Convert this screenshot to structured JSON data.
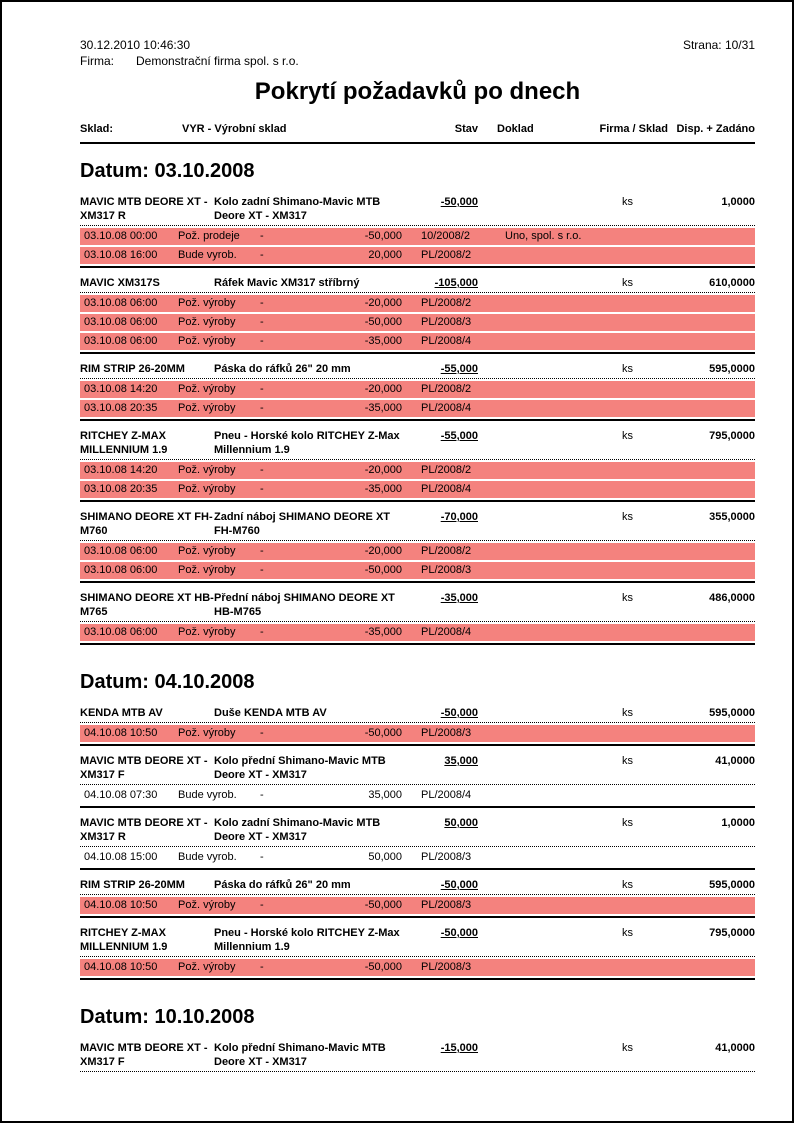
{
  "header": {
    "datetime": "30.12.2010  10:46:30",
    "page": "Strana: 10/31",
    "firma_label": "Firma:",
    "firma_value": "Demonstrační firma spol. s r.o.",
    "title": "Pokrytí požadavků po dnech"
  },
  "columns": {
    "sklad_label": "Sklad:",
    "sklad_value": "VYR - Výrobní sklad",
    "stav": "Stav",
    "doklad": "Doklad",
    "firma_sklad": "Firma / Sklad",
    "disp_zadano": "Disp. + Zadáno"
  },
  "colors": {
    "highlight_row": "#f4827e"
  },
  "sections": [
    {
      "date_heading": "Datum: 03.10.2008",
      "items": [
        {
          "code": "MAVIC MTB DEORE XT - XM317 R",
          "name": "Kolo zadní Shimano-Mavic MTB Deore XT - XM317",
          "stav": "-50,000",
          "unit": "ks",
          "disp": "1,0000",
          "rows": [
            {
              "datetime": "03.10.08 00:00",
              "type": "Pož. prodeje",
              "dash": "-",
              "amount": "-50,000",
              "doklad": "10/2008/2",
              "firma": "Uno, spol. s r.o.",
              "highlight": true
            },
            {
              "datetime": "03.10.08 16:00",
              "type": "Bude vyrob.",
              "dash": "-",
              "amount": "20,000",
              "doklad": "PL/2008/2",
              "firma": "",
              "highlight": true
            }
          ]
        },
        {
          "code": "MAVIC XM317S",
          "name": "Ráfek Mavic XM317 stříbrný",
          "stav": "-105,000",
          "unit": "ks",
          "disp": "610,0000",
          "rows": [
            {
              "datetime": "03.10.08 06:00",
              "type": "Pož. výroby",
              "dash": "-",
              "amount": "-20,000",
              "doklad": "PL/2008/2",
              "firma": "",
              "highlight": true
            },
            {
              "datetime": "03.10.08 06:00",
              "type": "Pož. výroby",
              "dash": "-",
              "amount": "-50,000",
              "doklad": "PL/2008/3",
              "firma": "",
              "highlight": true
            },
            {
              "datetime": "03.10.08 06:00",
              "type": "Pož. výroby",
              "dash": "-",
              "amount": "-35,000",
              "doklad": "PL/2008/4",
              "firma": "",
              "highlight": true
            }
          ]
        },
        {
          "code": "RIM STRIP 26-20MM",
          "name": "Páska do ráfků 26\" 20 mm",
          "stav": "-55,000",
          "unit": "ks",
          "disp": "595,0000",
          "rows": [
            {
              "datetime": "03.10.08 14:20",
              "type": "Pož. výroby",
              "dash": "-",
              "amount": "-20,000",
              "doklad": "PL/2008/2",
              "firma": "",
              "highlight": true
            },
            {
              "datetime": "03.10.08 20:35",
              "type": "Pož. výroby",
              "dash": "-",
              "amount": "-35,000",
              "doklad": "PL/2008/4",
              "firma": "",
              "highlight": true
            }
          ]
        },
        {
          "code": "RITCHEY Z-MAX MILLENNIUM 1.9",
          "name": "Pneu - Horské kolo RITCHEY Z-Max Millennium 1.9",
          "stav": "-55,000",
          "unit": "ks",
          "disp": "795,0000",
          "rows": [
            {
              "datetime": "03.10.08 14:20",
              "type": "Pož. výroby",
              "dash": "-",
              "amount": "-20,000",
              "doklad": "PL/2008/2",
              "firma": "",
              "highlight": true
            },
            {
              "datetime": "03.10.08 20:35",
              "type": "Pož. výroby",
              "dash": "-",
              "amount": "-35,000",
              "doklad": "PL/2008/4",
              "firma": "",
              "highlight": true
            }
          ]
        },
        {
          "code": "SHIMANO DEORE XT FH-M760",
          "name": "Zadní náboj SHIMANO DEORE XT FH-M760",
          "stav": "-70,000",
          "unit": "ks",
          "disp": "355,0000",
          "rows": [
            {
              "datetime": "03.10.08 06:00",
              "type": "Pož. výroby",
              "dash": "-",
              "amount": "-20,000",
              "doklad": "PL/2008/2",
              "firma": "",
              "highlight": true
            },
            {
              "datetime": "03.10.08 06:00",
              "type": "Pož. výroby",
              "dash": "-",
              "amount": "-50,000",
              "doklad": "PL/2008/3",
              "firma": "",
              "highlight": true
            }
          ]
        },
        {
          "code": "SHIMANO DEORE XT HB-M765",
          "name": "Přední náboj SHIMANO DEORE XT HB-M765",
          "stav": "-35,000",
          "unit": "ks",
          "disp": "486,0000",
          "rows": [
            {
              "datetime": "03.10.08 06:00",
              "type": "Pož. výroby",
              "dash": "-",
              "amount": "-35,000",
              "doklad": "PL/2008/4",
              "firma": "",
              "highlight": true
            }
          ]
        }
      ]
    },
    {
      "date_heading": "Datum: 04.10.2008",
      "items": [
        {
          "code": "KENDA MTB AV",
          "name": "Duše KENDA MTB AV",
          "stav": "-50,000",
          "unit": "ks",
          "disp": "595,0000",
          "rows": [
            {
              "datetime": "04.10.08 10:50",
              "type": "Pož. výroby",
              "dash": "-",
              "amount": "-50,000",
              "doklad": "PL/2008/3",
              "firma": "",
              "highlight": true
            }
          ]
        },
        {
          "code": "MAVIC MTB DEORE XT - XM317 F",
          "name": "Kolo přední Shimano-Mavic MTB Deore XT - XM317",
          "stav": "35,000",
          "unit": "ks",
          "disp": "41,0000",
          "rows": [
            {
              "datetime": "04.10.08 07:30",
              "type": "Bude vyrob.",
              "dash": "-",
              "amount": "35,000",
              "doklad": "PL/2008/4",
              "firma": "",
              "highlight": false
            }
          ]
        },
        {
          "code": "MAVIC MTB DEORE XT - XM317 R",
          "name": "Kolo zadní Shimano-Mavic MTB Deore XT - XM317",
          "stav": "50,000",
          "unit": "ks",
          "disp": "1,0000",
          "rows": [
            {
              "datetime": "04.10.08 15:00",
              "type": "Bude vyrob.",
              "dash": "-",
              "amount": "50,000",
              "doklad": "PL/2008/3",
              "firma": "",
              "highlight": false
            }
          ]
        },
        {
          "code": "RIM STRIP 26-20MM",
          "name": "Páska do ráfků 26\" 20 mm",
          "stav": "-50,000",
          "unit": "ks",
          "disp": "595,0000",
          "rows": [
            {
              "datetime": "04.10.08 10:50",
              "type": "Pož. výroby",
              "dash": "-",
              "amount": "-50,000",
              "doklad": "PL/2008/3",
              "firma": "",
              "highlight": true
            }
          ]
        },
        {
          "code": "RITCHEY Z-MAX MILLENNIUM 1.9",
          "name": "Pneu - Horské kolo RITCHEY Z-Max Millennium 1.9",
          "stav": "-50,000",
          "unit": "ks",
          "disp": "795,0000",
          "rows": [
            {
              "datetime": "04.10.08 10:50",
              "type": "Pož. výroby",
              "dash": "-",
              "amount": "-50,000",
              "doklad": "PL/2008/3",
              "firma": "",
              "highlight": true
            }
          ]
        }
      ]
    },
    {
      "date_heading": "Datum: 10.10.2008",
      "items": [
        {
          "code": "MAVIC MTB DEORE XT - XM317 F",
          "name": "Kolo přední Shimano-Mavic MTB Deore XT - XM317",
          "stav": "-15,000",
          "unit": "ks",
          "disp": "41,0000",
          "rows": []
        }
      ]
    }
  ]
}
